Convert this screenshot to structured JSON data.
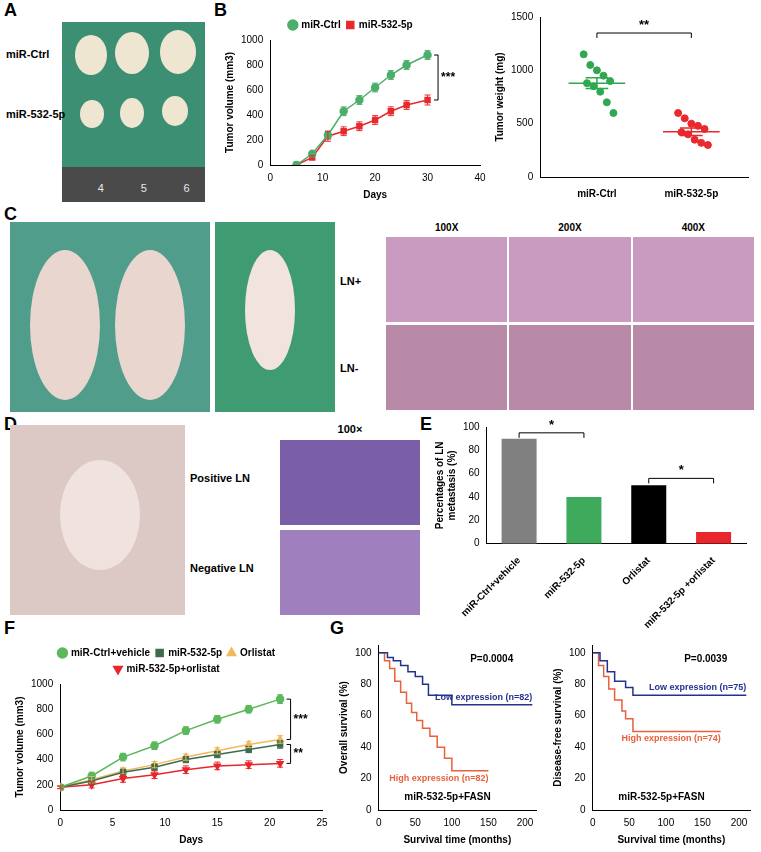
{
  "panel_letters": [
    "A",
    "B",
    "C",
    "D",
    "E",
    "F",
    "G"
  ],
  "photo_panels": {
    "A": {
      "row_labels": [
        "miR-Ctrl",
        "miR-532-5p"
      ],
      "ruler_marks": [
        "4",
        "5",
        "6"
      ]
    },
    "C": {
      "row_labels": [
        "LN+",
        "LN-"
      ],
      "magnifications": [
        "100X",
        "200X",
        "400X"
      ]
    },
    "D": {
      "magnification": "100×",
      "row_labels": [
        "Positive LN",
        "Negative LN"
      ]
    }
  },
  "chart_data": [
    {
      "type": "line",
      "x_label": "Days",
      "y_label": "Tumor volume (mm3)",
      "x": [
        5,
        8,
        11,
        14,
        17,
        20,
        23,
        26,
        30
      ],
      "series": [
        {
          "name": "miR-Ctrl",
          "color": "#4cae6a",
          "marker": "circle",
          "values": [
            0,
            90,
            240,
            430,
            520,
            620,
            720,
            800,
            880
          ],
          "errors": [
            0,
            15,
            30,
            35,
            35,
            35,
            35,
            35,
            35
          ]
        },
        {
          "name": "miR-532-5p",
          "color": "#e8292e",
          "marker": "square",
          "values": [
            0,
            60,
            230,
            270,
            310,
            360,
            430,
            480,
            520
          ],
          "errors": [
            0,
            15,
            40,
            35,
            35,
            35,
            35,
            35,
            40
          ]
        }
      ],
      "xlim": [
        0,
        40
      ],
      "xticks": [
        0,
        10,
        20,
        30,
        40
      ],
      "ylim": [
        0,
        1000
      ],
      "yticks": [
        0,
        200,
        400,
        600,
        800,
        1000
      ],
      "legend": "top",
      "grid": false,
      "annotations": [
        {
          "text": "***",
          "x": 32,
          "y": [
            520,
            880
          ]
        }
      ]
    },
    {
      "type": "dot",
      "y_label": "Tumor weight (mg)",
      "categories": [
        "miR-Ctrl",
        "miR-532-5p"
      ],
      "colors": [
        "#2fa84f",
        "#e8292e"
      ],
      "points": [
        [
          1150,
          1050,
          1000,
          950,
          900,
          880,
          850,
          800,
          700,
          600
        ],
        [
          600,
          550,
          500,
          480,
          450,
          420,
          400,
          350,
          320,
          300
        ]
      ],
      "mean": [
        880,
        425
      ],
      "sem": [
        50,
        35
      ],
      "ylim": [
        0,
        1500
      ],
      "yticks": [
        0,
        500,
        1000,
        1500
      ],
      "grid": false,
      "annotations": [
        {
          "text": "**",
          "categories": [
            "miR-Ctrl",
            "miR-532-5p"
          ],
          "y": 1350
        }
      ]
    },
    {
      "type": "bar",
      "y_label": "Percentages of LN metastasis (%)",
      "categories": [
        "miR-Ctrl+vehicle",
        "miR-532-5p",
        "Orlistat",
        "miR-532-5p +orlistat"
      ],
      "values": [
        90,
        40,
        50,
        10
      ],
      "colors": [
        "#808080",
        "#3daa5c",
        "#000000",
        "#e8262b"
      ],
      "ylim": [
        0,
        100
      ],
      "yticks": [
        0,
        20,
        40,
        60,
        80,
        100
      ],
      "grid": false,
      "annotations": [
        {
          "text": "*",
          "categories": [
            "miR-Ctrl+vehicle",
            "miR-532-5p"
          ],
          "y": 95
        },
        {
          "text": "*",
          "categories": [
            "Orlistat",
            "miR-532-5p +orlistat"
          ],
          "y": 56
        }
      ]
    },
    {
      "type": "line",
      "x_label": "Days",
      "y_label": "Tumor volume (mm3)",
      "x": [
        0,
        3,
        6,
        9,
        12,
        15,
        18,
        21
      ],
      "series": [
        {
          "name": "miR-Ctrl+vehicle",
          "color": "#5cb85c",
          "marker": "circle",
          "values": [
            180,
            270,
            420,
            510,
            630,
            720,
            800,
            880
          ],
          "errors": [
            10,
            30,
            30,
            30,
            30,
            30,
            30,
            35
          ]
        },
        {
          "name": "miR-532-5p",
          "color": "#3d6b4f",
          "marker": "square",
          "values": [
            180,
            230,
            300,
            340,
            400,
            440,
            480,
            520
          ],
          "errors": [
            10,
            25,
            25,
            25,
            25,
            25,
            25,
            30
          ]
        },
        {
          "name": "Orlistat",
          "color": "#f0b95a",
          "marker": "triangle",
          "values": [
            180,
            240,
            310,
            360,
            420,
            470,
            520,
            560
          ],
          "errors": [
            10,
            25,
            25,
            25,
            25,
            25,
            25,
            30
          ]
        },
        {
          "name": "miR-532-5p+orlistat",
          "color": "#e8262b",
          "marker": "triangle-down",
          "values": [
            180,
            200,
            250,
            280,
            320,
            350,
            360,
            370
          ],
          "errors": [
            10,
            25,
            30,
            30,
            30,
            30,
            30,
            30
          ]
        }
      ],
      "xlim": [
        0,
        25
      ],
      "xticks": [
        0,
        5,
        10,
        15,
        20,
        25
      ],
      "ylim": [
        0,
        1000
      ],
      "yticks": [
        0,
        200,
        400,
        600,
        800,
        1000
      ],
      "legend": "top",
      "grid": false,
      "annotations": [
        {
          "text": "***",
          "x": 22,
          "y": [
            560,
            880
          ]
        },
        {
          "text": "**",
          "x": 22,
          "y": [
            370,
            520
          ]
        }
      ]
    },
    {
      "type": "line",
      "line_style": "step",
      "x_label": "Survival time (months)",
      "y_label": "Overall survival (%)",
      "series": [
        {
          "name": "Low expression (n=82)",
          "color": "#25318f",
          "x": [
            0,
            12,
            20,
            30,
            40,
            50,
            60,
            68,
            100,
            210
          ],
          "values": [
            100,
            97,
            95,
            92,
            88,
            85,
            80,
            73,
            67,
            67
          ]
        },
        {
          "name": "High expression (n=82)",
          "color": "#e8603c",
          "x": [
            0,
            8,
            15,
            22,
            30,
            38,
            45,
            52,
            60,
            70,
            80,
            90,
            100,
            150
          ],
          "values": [
            100,
            95,
            90,
            82,
            75,
            68,
            62,
            57,
            52,
            47,
            40,
            33,
            25,
            25
          ]
        }
      ],
      "xlim": [
        0,
        215
      ],
      "xticks": [
        0,
        50,
        100,
        150,
        200
      ],
      "ylim": [
        0,
        105
      ],
      "yticks": [
        0,
        20,
        40,
        60,
        80,
        100
      ],
      "grid": false,
      "annotations": [
        {
          "text": "P=0.0004",
          "x": 125,
          "y": 96
        },
        {
          "text": "miR-532-5p+FASN",
          "x": 35,
          "y": 8
        }
      ]
    },
    {
      "type": "line",
      "line_style": "step",
      "x_label": "Survival time (months)",
      "y_label": "Disease-free survival (%)",
      "series": [
        {
          "name": "Low expression (n=75)",
          "color": "#25318f",
          "x": [
            0,
            10,
            20,
            30,
            45,
            55,
            210
          ],
          "values": [
            100,
            95,
            88,
            82,
            78,
            73,
            73
          ]
        },
        {
          "name": "High expression (n=74)",
          "color": "#e8603c",
          "x": [
            0,
            8,
            15,
            22,
            30,
            40,
            45,
            55,
            175
          ],
          "values": [
            100,
            92,
            85,
            77,
            70,
            63,
            58,
            50,
            50
          ]
        }
      ],
      "xlim": [
        0,
        215
      ],
      "xticks": [
        0,
        50,
        100,
        150,
        200
      ],
      "ylim": [
        0,
        105
      ],
      "yticks": [
        0,
        20,
        40,
        60,
        80,
        100
      ],
      "grid": false,
      "annotations": [
        {
          "text": "P=0.0039",
          "x": 125,
          "y": 96
        },
        {
          "text": "miR-532-5p+FASN",
          "x": 35,
          "y": 8
        }
      ]
    }
  ]
}
